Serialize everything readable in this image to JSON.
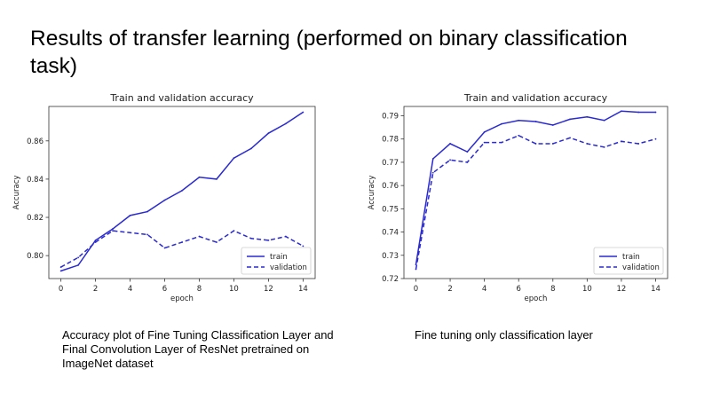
{
  "slide": {
    "title": "Results of transfer learning (performed on binary classification task)"
  },
  "captions": {
    "left": "Accuracy plot of Fine Tuning Classification Layer and Final Convolution Layer of ResNet pretrained on ImageNet dataset",
    "right": "Fine tuning only classification layer"
  },
  "colors": {
    "series": "#2a2ad0",
    "axis": "#333333",
    "background": "#ffffff"
  },
  "chart_data": [
    {
      "type": "line",
      "title": "Train and validation accuracy",
      "xlabel": "epoch",
      "ylabel": "Accuracy",
      "xlim": [
        -0.7,
        14.7
      ],
      "ylim": [
        0.788,
        0.878
      ],
      "xticks": [
        0,
        2,
        4,
        6,
        8,
        10,
        12,
        14
      ],
      "yticks": [
        0.8,
        0.82,
        0.84,
        0.86
      ],
      "ytick_labels": [
        "0.80",
        "0.82",
        "0.84",
        "0.86"
      ],
      "grid": false,
      "legend_position": "bottom-right",
      "x": [
        0,
        1,
        2,
        3,
        4,
        5,
        6,
        7,
        8,
        9,
        10,
        11,
        12,
        13,
        14
      ],
      "series": [
        {
          "name": "train",
          "style": "solid",
          "values": [
            0.792,
            0.795,
            0.808,
            0.814,
            0.821,
            0.823,
            0.829,
            0.834,
            0.841,
            0.84,
            0.851,
            0.856,
            0.864,
            0.869,
            0.875
          ]
        },
        {
          "name": "validation",
          "style": "dashed",
          "values": [
            0.794,
            0.799,
            0.807,
            0.813,
            0.812,
            0.811,
            0.804,
            0.807,
            0.81,
            0.807,
            0.813,
            0.809,
            0.808,
            0.81,
            0.805
          ]
        }
      ]
    },
    {
      "type": "line",
      "title": "Train and validation accuracy",
      "xlabel": "epoch",
      "ylabel": "Accuracy",
      "xlim": [
        -0.7,
        14.7
      ],
      "ylim": [
        0.72,
        0.794
      ],
      "xticks": [
        0,
        2,
        4,
        6,
        8,
        10,
        12,
        14
      ],
      "yticks": [
        0.72,
        0.73,
        0.74,
        0.75,
        0.76,
        0.77,
        0.78,
        0.79
      ],
      "ytick_labels": [
        "0.72",
        "0.73",
        "0.74",
        "0.75",
        "0.76",
        "0.77",
        "0.78",
        "0.79"
      ],
      "grid": false,
      "legend_position": "bottom-right",
      "x": [
        0,
        1,
        2,
        3,
        4,
        5,
        6,
        7,
        8,
        9,
        10,
        11,
        12,
        13,
        14
      ],
      "series": [
        {
          "name": "train",
          "style": "solid",
          "values": [
            0.726,
            0.7715,
            0.778,
            0.7745,
            0.783,
            0.7865,
            0.788,
            0.7875,
            0.786,
            0.7885,
            0.7895,
            0.788,
            0.792,
            0.7915,
            0.7915
          ]
        },
        {
          "name": "validation",
          "style": "dashed",
          "values": [
            0.724,
            0.7655,
            0.771,
            0.77,
            0.7785,
            0.7785,
            0.7815,
            0.778,
            0.778,
            0.7805,
            0.778,
            0.7765,
            0.779,
            0.778,
            0.78
          ]
        }
      ]
    }
  ]
}
